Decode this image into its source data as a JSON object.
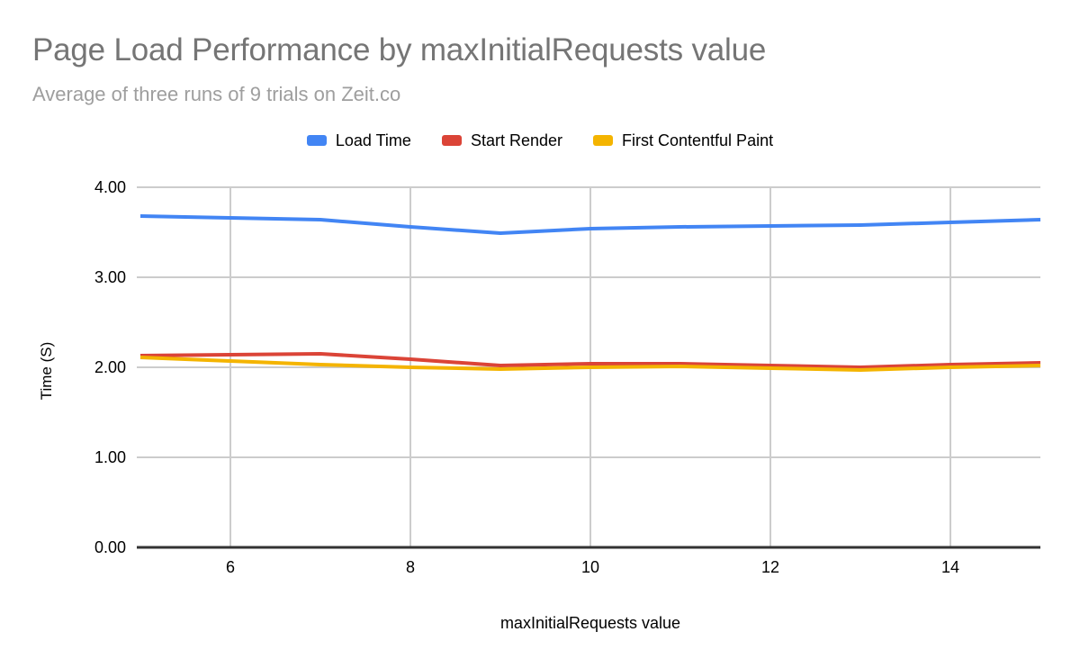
{
  "header": {
    "title": "Page Load Performance by maxInitialRequests value",
    "subtitle": "Average of three runs of 9 trials on Zeit.co",
    "title_color": "#757575",
    "subtitle_color": "#9e9e9e"
  },
  "chart_data": {
    "type": "line",
    "title": "Page Load Performance by maxInitialRequests value",
    "subtitle": "Average of three runs of 9 trials on Zeit.co",
    "xlabel": "maxInitialRequests value",
    "ylabel": "Time (S)",
    "x": [
      5,
      6,
      7,
      8,
      9,
      10,
      11,
      12,
      13,
      14,
      15
    ],
    "series": [
      {
        "name": "Load Time",
        "color": "#4285f4",
        "values": [
          3.68,
          3.66,
          3.64,
          3.56,
          3.49,
          3.54,
          3.56,
          3.57,
          3.58,
          3.61,
          3.64
        ]
      },
      {
        "name": "Start Render",
        "color": "#db4437",
        "values": [
          2.13,
          2.14,
          2.15,
          2.09,
          2.02,
          2.04,
          2.04,
          2.02,
          2.0,
          2.03,
          2.05
        ]
      },
      {
        "name": "First Contentful Paint",
        "color": "#f4b400",
        "values": [
          2.11,
          2.07,
          2.03,
          2.0,
          1.98,
          2.0,
          2.01,
          1.99,
          1.97,
          2.0,
          2.02
        ]
      }
    ],
    "xlim": [
      5,
      15
    ],
    "ylim": [
      0,
      4
    ],
    "x_ticks": [
      6,
      8,
      10,
      12,
      14
    ],
    "y_ticks": [
      0,
      1,
      2,
      3,
      4
    ],
    "y_tick_format": "2dp",
    "grid": true,
    "grid_color": "#cccccc",
    "axis_color": "#333333",
    "tick_label_color": "#000000",
    "legend_position": "top"
  }
}
